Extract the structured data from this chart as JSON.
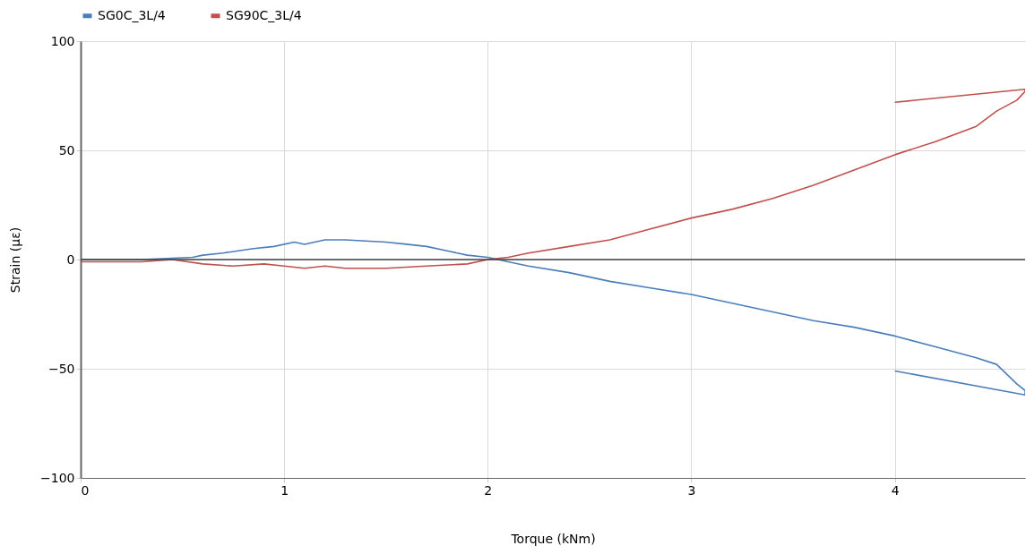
{
  "chart_data": {
    "type": "line",
    "xlabel": "Torque (kNm)",
    "ylabel": "Strain (με)",
    "xlim": [
      0,
      4.64
    ],
    "xticks": [
      0,
      1,
      2,
      3,
      4
    ],
    "ylim": [
      -100,
      100
    ],
    "yticks": [
      -100,
      -50,
      0,
      50,
      100
    ],
    "grid": true,
    "legend": "top",
    "marker": "none",
    "line_style": "solid",
    "ref_lines": [
      {
        "axis": "y",
        "value": 0,
        "color": "#404040"
      }
    ],
    "series": [
      {
        "name": "SG0C_3L/4",
        "color": "#4a7ebb",
        "x": [
          0,
          0.3,
          0.55,
          0.6,
          0.7,
          0.85,
          0.95,
          1.05,
          1.1,
          1.2,
          1.3,
          1.5,
          1.6,
          1.7,
          1.8,
          1.9,
          2.0,
          2.1,
          2.2,
          2.4,
          2.6,
          2.8,
          3.0,
          3.2,
          3.4,
          3.6,
          3.8,
          4.0,
          4.2,
          4.4,
          4.5,
          4.6,
          4.64,
          4.64,
          4.0
        ],
        "values": [
          0,
          0,
          1,
          2,
          3,
          5,
          6,
          8,
          7,
          9,
          9,
          8,
          7,
          6,
          4,
          2,
          1,
          -1,
          -3,
          -6,
          -10,
          -13,
          -16,
          -20,
          -24,
          -28,
          -31,
          -35,
          -40,
          -45,
          -48,
          -57,
          -60,
          -62,
          -51
        ]
      },
      {
        "name": "SG90C_3L/4",
        "color": "#c0504d",
        "x": [
          0,
          0.3,
          0.45,
          0.6,
          0.75,
          0.9,
          1.0,
          1.1,
          1.2,
          1.3,
          1.5,
          1.7,
          1.9,
          2.0,
          2.1,
          2.2,
          2.4,
          2.6,
          2.8,
          3.0,
          3.2,
          3.4,
          3.6,
          3.8,
          4.0,
          4.2,
          4.4,
          4.5,
          4.6,
          4.64,
          4.64,
          4.0
        ],
        "values": [
          -1,
          -1,
          0,
          -2,
          -3,
          -2,
          -3,
          -4,
          -3,
          -4,
          -4,
          -3,
          -2,
          0,
          1,
          3,
          6,
          9,
          14,
          19,
          23,
          28,
          34,
          41,
          48,
          54,
          61,
          68,
          73,
          77,
          78,
          72
        ]
      }
    ]
  }
}
